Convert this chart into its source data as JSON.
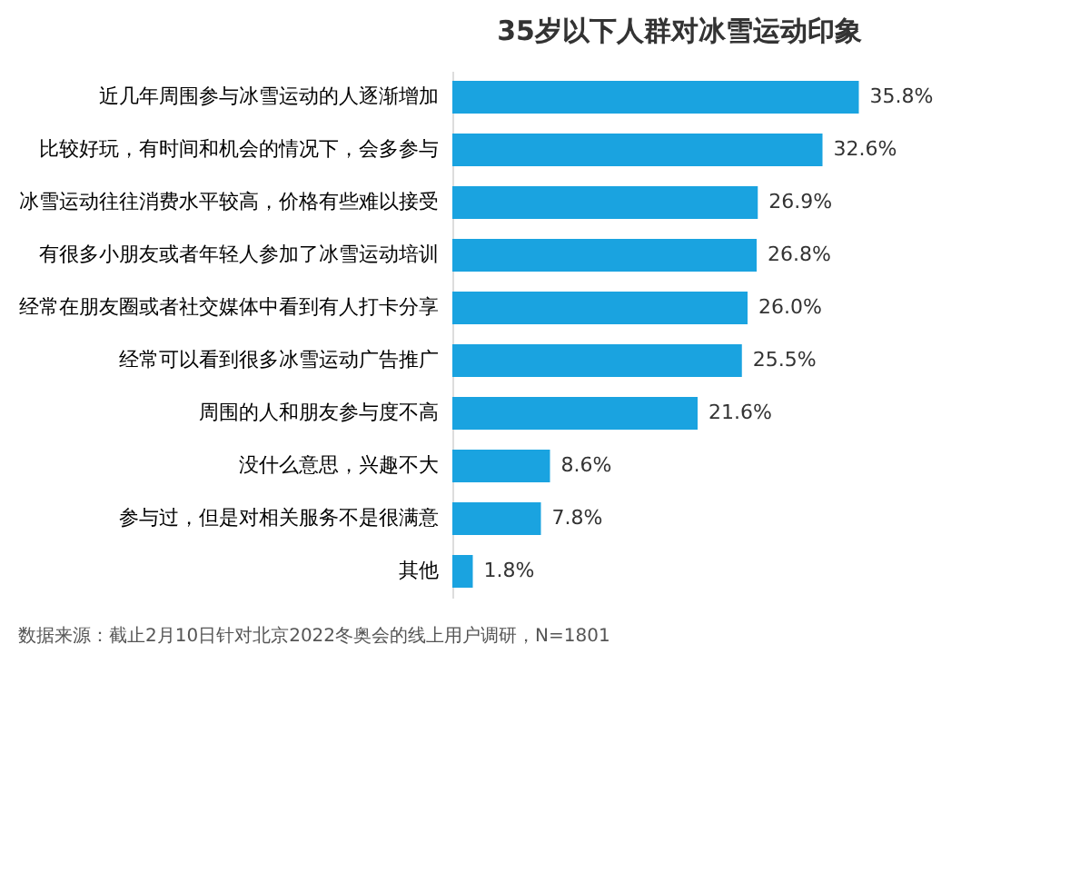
{
  "chart_data": {
    "type": "bar",
    "orientation": "horizontal",
    "title": "35岁以下人群对冰雪运动印象",
    "categories": [
      "近几年周围参与冰雪运动的人逐渐增加",
      "比较好玩，有时间和机会的情况下，会多参与",
      "冰雪运动往往消费水平较高，价格有些难以接受",
      "有很多小朋友或者年轻人参加了冰雪运动培训",
      "经常在朋友圈或者社交媒体中看到有人打卡分享",
      "经常可以看到很多冰雪运动广告推广",
      "周围的人和朋友参与度不高",
      "没什么意思，兴趣不大",
      "参与过，但是对相关服务不是很满意",
      "其他"
    ],
    "values": [
      35.8,
      32.6,
      26.9,
      26.8,
      26.0,
      25.5,
      21.6,
      8.6,
      7.8,
      1.8
    ],
    "value_labels": [
      "35.8%",
      "32.6%",
      "26.9%",
      "26.8%",
      "26.0%",
      "25.5%",
      "21.6%",
      "8.6%",
      "7.8%",
      "1.8%"
    ],
    "color": "#1aa3e0",
    "tick_labels": "y",
    "annotations": [
      "数据来源：截止2月10日针对北京2022冬奥会的线上用户调研，N=1801"
    ]
  }
}
